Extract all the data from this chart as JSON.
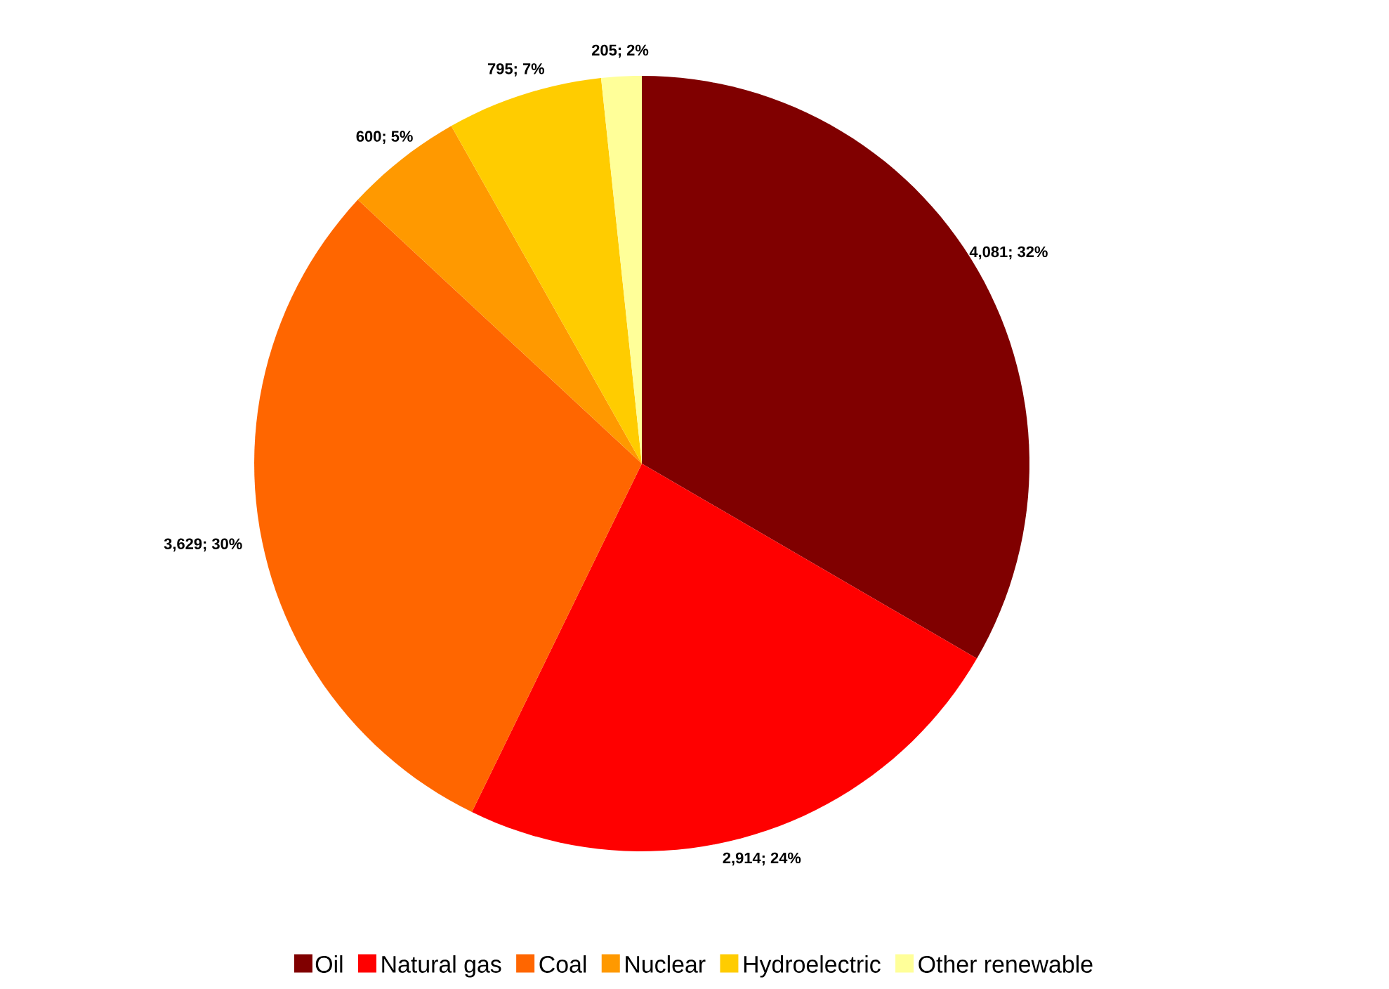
{
  "chart_data": {
    "type": "pie",
    "categories": [
      "Oil",
      "Natural gas",
      "Coal",
      "Nuclear",
      "Hydroelectric",
      "Other renewable"
    ],
    "values": [
      4081,
      2914,
      3629,
      600,
      795,
      205
    ],
    "value_labels": [
      "4,081; 32%",
      "2,914; 24%",
      "3,629; 30%",
      "600; 5%",
      "795; 7%",
      "205; 2%"
    ],
    "colors": [
      "#800000",
      "#ff0000",
      "#ff6600",
      "#ff9900",
      "#ffcc00",
      "#ffff99"
    ],
    "legend": "bottom"
  }
}
